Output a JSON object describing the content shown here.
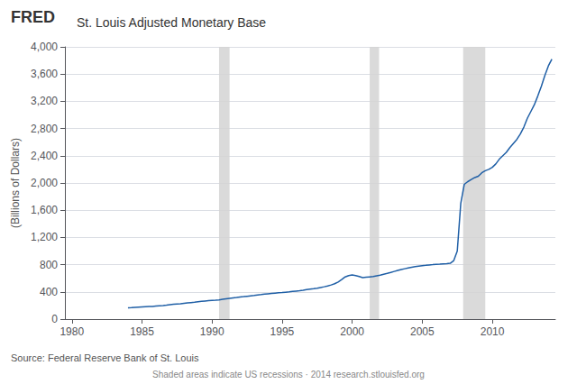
{
  "chart_data": {
    "type": "line",
    "title": "St. Louis Adjusted Monetary Base",
    "ylabel": "(Billions of Dollars)",
    "annotations": [
      "FRED",
      "Source: Federal Reserve Bank of St. Louis",
      "Shaded areas indicate US recessions · 2014 research.stlouisfed.org"
    ],
    "color": "#1f5fa6",
    "grid": true,
    "xlim": [
      1979.5,
      2014.5
    ],
    "xticks": [
      1980,
      1985,
      1990,
      1995,
      2000,
      2005,
      2010
    ],
    "ylim": [
      0,
      4000
    ],
    "yticks": [
      0,
      400,
      800,
      {
        "value": 1200,
        "label": "1,200"
      },
      {
        "value": 1600,
        "label": "1,600"
      },
      {
        "value": 2000,
        "label": "2,000"
      },
      {
        "value": 2400,
        "label": "2,400"
      },
      {
        "value": 2800,
        "label": "2,800"
      },
      {
        "value": 3200,
        "label": "3,200"
      },
      {
        "value": 3600,
        "label": "3,600"
      },
      {
        "value": 4000,
        "label": "4,000"
      }
    ],
    "recessions": [
      [
        1990.5,
        1991.25
      ],
      [
        2001.25,
        2001.92
      ],
      [
        2007.92,
        2009.5
      ]
    ],
    "x": [
      1984,
      1984.25,
      1984.5,
      1984.75,
      1985,
      1985.25,
      1985.5,
      1985.75,
      1986,
      1986.25,
      1986.5,
      1986.75,
      1987,
      1987.25,
      1987.5,
      1987.75,
      1988,
      1988.25,
      1988.5,
      1988.75,
      1989,
      1989.25,
      1989.5,
      1989.75,
      1990,
      1990.25,
      1990.5,
      1990.75,
      1991,
      1991.25,
      1991.5,
      1991.75,
      1992,
      1992.25,
      1992.5,
      1992.75,
      1993,
      1993.25,
      1993.5,
      1993.75,
      1994,
      1994.25,
      1994.5,
      1994.75,
      1995,
      1995.25,
      1995.5,
      1995.75,
      1996,
      1996.25,
      1996.5,
      1996.75,
      1997,
      1997.25,
      1997.5,
      1997.75,
      1998,
      1998.25,
      1998.5,
      1998.75,
      1999,
      1999.25,
      1999.5,
      1999.75,
      2000,
      2000.25,
      2000.5,
      2000.75,
      2001,
      2001.25,
      2001.5,
      2001.75,
      2002,
      2002.25,
      2002.5,
      2002.75,
      2003,
      2003.25,
      2003.5,
      2003.75,
      2004,
      2004.25,
      2004.5,
      2004.75,
      2005,
      2005.25,
      2005.5,
      2005.75,
      2006,
      2006.25,
      2006.5,
      2006.75,
      2007,
      2007.25,
      2007.5,
      2007.75,
      2008,
      2008.25,
      2008.5,
      2008.75,
      2009,
      2009.25,
      2009.5,
      2009.75,
      2010,
      2010.25,
      2010.5,
      2010.75,
      2011,
      2011.25,
      2011.5,
      2011.75,
      2012,
      2012.25,
      2012.5,
      2012.75,
      2013,
      2013.25,
      2013.5,
      2013.75,
      2014,
      2014.25
    ],
    "values": [
      165,
      168,
      172,
      175,
      178,
      181,
      184,
      187,
      192,
      196,
      200,
      205,
      212,
      218,
      222,
      225,
      232,
      238,
      243,
      248,
      255,
      260,
      265,
      270,
      275,
      278,
      282,
      290,
      298,
      305,
      312,
      318,
      325,
      330,
      336,
      342,
      348,
      355,
      360,
      366,
      372,
      378,
      382,
      386,
      390,
      395,
      400,
      406,
      412,
      418,
      425,
      433,
      440,
      447,
      455,
      465,
      475,
      488,
      502,
      520,
      545,
      580,
      620,
      640,
      650,
      640,
      625,
      610,
      615,
      620,
      625,
      635,
      645,
      660,
      672,
      685,
      700,
      715,
      728,
      740,
      752,
      762,
      770,
      778,
      785,
      790,
      796,
      800,
      805,
      808,
      812,
      815,
      820,
      860,
      1000,
      1700,
      1980,
      2020,
      2050,
      2080,
      2100,
      2150,
      2180,
      2200,
      2230,
      2280,
      2350,
      2400,
      2450,
      2520,
      2580,
      2640,
      2720,
      2820,
      2950,
      3050,
      3150,
      3280,
      3420,
      3580,
      3720,
      3820
    ]
  }
}
